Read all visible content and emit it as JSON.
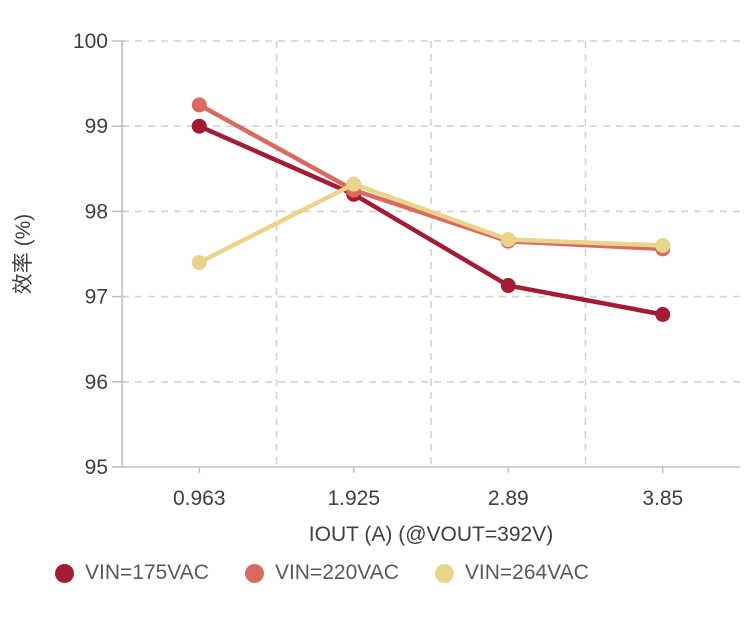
{
  "chart_data": {
    "type": "line",
    "title": "",
    "categories": [
      "0.963",
      "1.925",
      "2.89",
      "3.85"
    ],
    "series": [
      {
        "name": "VIN=175VAC",
        "color": "#a21c36",
        "values": [
          99.0,
          98.2,
          97.13,
          96.79
        ]
      },
      {
        "name": "VIN=220VAC",
        "color": "#d96a60",
        "values": [
          99.25,
          98.25,
          97.65,
          97.56
        ]
      },
      {
        "name": "VIN=264VAC",
        "color": "#e9d48c",
        "values": [
          97.4,
          98.32,
          97.67,
          97.6
        ]
      }
    ],
    "xlabel": "IOUT (A) (@VOUT=392V)",
    "ylabel": "效率 (%)",
    "ylim": [
      95,
      100
    ],
    "y_ticks": [
      "95",
      "96",
      "97",
      "98",
      "99",
      "100"
    ],
    "grid": "dashed",
    "legend_position": "bottom",
    "marker": "circle"
  },
  "style_colors": {
    "axis_line": "#c2c2c2",
    "grid_line": "#d2d2d2",
    "tick_label": "#404040",
    "axis_title": "#404040",
    "legend_text": "#595959",
    "background": "#ffffff"
  }
}
